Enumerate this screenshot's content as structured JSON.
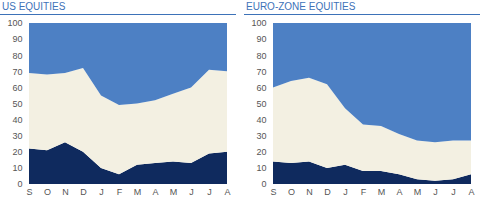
{
  "chart_data": [
    {
      "type": "area",
      "title": "US EQUITIES",
      "categories": [
        "S",
        "O",
        "N",
        "D",
        "J",
        "F",
        "M",
        "A",
        "M",
        "J",
        "J",
        "A"
      ],
      "series": [
        {
          "color": "#0f2a5e",
          "values": [
            22,
            21,
            26,
            20,
            10,
            6,
            12,
            13,
            14,
            13,
            19,
            20
          ]
        },
        {
          "color": "#f3f0e2",
          "values": [
            47,
            47,
            43,
            52,
            45,
            43,
            38,
            39,
            42,
            47,
            52,
            50
          ]
        },
        {
          "color": "#4d80c4",
          "values": [
            31,
            32,
            31,
            28,
            45,
            51,
            50,
            48,
            44,
            40,
            29,
            30
          ]
        }
      ],
      "ylim": [
        0,
        100
      ],
      "yticks": [
        0,
        10,
        20,
        30,
        40,
        50,
        60,
        70,
        80,
        90,
        100
      ],
      "stacked": true
    },
    {
      "type": "area",
      "title": "EURO-ZONE EQUITIES",
      "categories": [
        "S",
        "O",
        "N",
        "D",
        "J",
        "F",
        "M",
        "A",
        "M",
        "J",
        "J",
        "A"
      ],
      "series": [
        {
          "color": "#0f2a5e",
          "values": [
            14,
            13,
            14,
            10,
            12,
            8,
            8,
            6,
            3,
            2,
            3,
            6
          ]
        },
        {
          "color": "#f3f0e2",
          "values": [
            46,
            51,
            52,
            52,
            35,
            29,
            28,
            25,
            24,
            24,
            24,
            21
          ]
        },
        {
          "color": "#4d80c4",
          "values": [
            40,
            36,
            34,
            38,
            53,
            63,
            64,
            69,
            73,
            74,
            73,
            73
          ]
        }
      ],
      "ylim": [
        0,
        100
      ],
      "yticks": [
        0,
        10,
        20,
        30,
        40,
        50,
        60,
        70,
        80,
        90,
        100
      ],
      "stacked": true
    }
  ]
}
